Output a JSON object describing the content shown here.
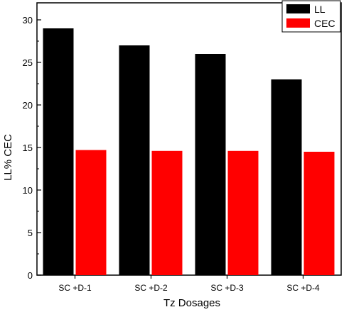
{
  "chart_data": {
    "type": "bar",
    "categories": [
      "SC +D-1",
      "SC +D-2",
      "SC +D-3",
      "SC +D-4"
    ],
    "series": [
      {
        "name": "LL",
        "values": [
          29,
          27,
          26,
          23
        ],
        "color": "#000000"
      },
      {
        "name": "CEC",
        "values": [
          14.7,
          14.6,
          14.6,
          14.5
        ],
        "color": "#ff0000"
      }
    ],
    "xlabel": "Tz Dosages",
    "ylabel": "LL% CEC",
    "ylim": [
      0,
      32
    ],
    "yticks": [
      0,
      5,
      10,
      15,
      20,
      25,
      30
    ],
    "legend_position": "top-right",
    "grid": false
  }
}
